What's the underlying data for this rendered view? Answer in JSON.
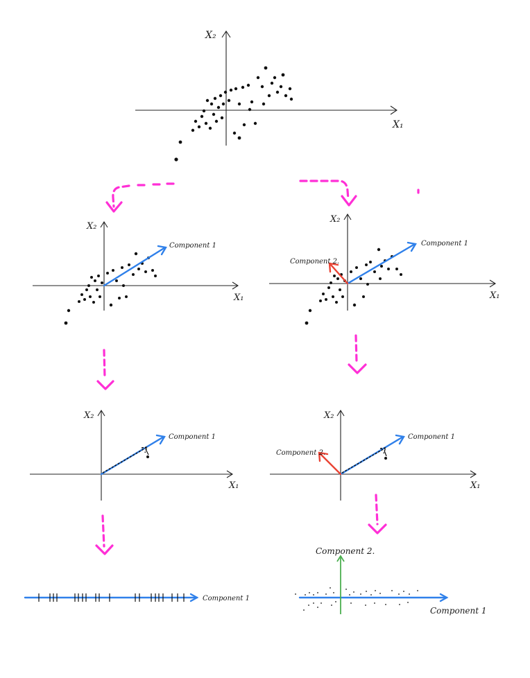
{
  "labels": {
    "x1": "X₁",
    "x2": "X₂",
    "component1": "Component 1",
    "component2": "Component 2."
  },
  "colors": {
    "arrow_pink": "#ff2fd6",
    "component1_blue": "#2f80ea",
    "component2_red": "#ea4334",
    "axis_green": "#4caf50",
    "points": "#111111"
  }
}
